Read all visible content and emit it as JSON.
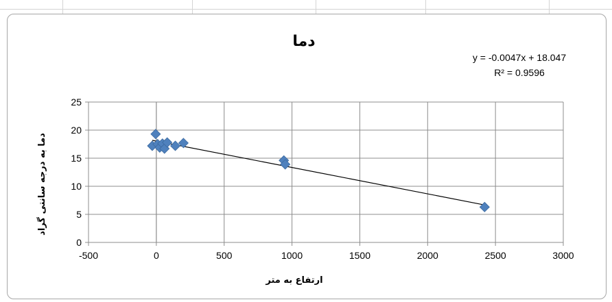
{
  "chart_data": {
    "type": "scatter",
    "title": "دما",
    "xlabel": "ارتفاع به متر",
    "ylabel": "دما به درجه سانتی گراد",
    "xlim": [
      -500,
      3000
    ],
    "ylim": [
      0,
      25
    ],
    "xticks": [
      "-500",
      "0",
      "500",
      "1000",
      "1500",
      "2000",
      "2500",
      "3000"
    ],
    "yticks": [
      "0",
      "5",
      "10",
      "15",
      "20",
      "25"
    ],
    "grid": true,
    "marker_color": "#4f81bd",
    "trendline_color": "#000000",
    "series": [
      {
        "points": [
          {
            "x": -30,
            "y": 17.2
          },
          {
            "x": -5,
            "y": 19.3
          },
          {
            "x": 10,
            "y": 17.5
          },
          {
            "x": 25,
            "y": 16.9
          },
          {
            "x": 45,
            "y": 17.6
          },
          {
            "x": 60,
            "y": 16.7
          },
          {
            "x": 80,
            "y": 17.8
          },
          {
            "x": 140,
            "y": 17.2
          },
          {
            "x": 200,
            "y": 17.7
          },
          {
            "x": 940,
            "y": 14.6
          },
          {
            "x": 950,
            "y": 13.9
          },
          {
            "x": 2420,
            "y": 6.3
          }
        ]
      }
    ],
    "trendline": {
      "type": "linear",
      "slope": -0.0047,
      "intercept": 18.047,
      "equation": "y = -0.0047x + 18.047",
      "r_squared": "R² = 0.9596"
    }
  }
}
